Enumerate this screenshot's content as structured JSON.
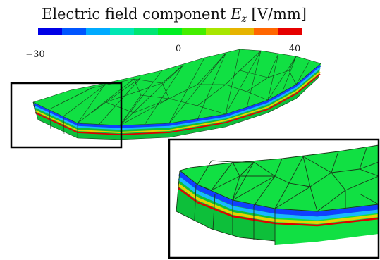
{
  "colorbar": {
    "title_prefix": "Electric field component ",
    "title_symbol": "E",
    "title_subscript": "z",
    "title_unit": " [V/mm]",
    "tick_min": "−30",
    "tick_zero": "0",
    "tick_max": "40",
    "segments": [
      "#0000e6",
      "#0055ff",
      "#00aaff",
      "#00e6b4",
      "#00e673",
      "#00ee22",
      "#44ee00",
      "#a8e600",
      "#e6b400",
      "#ff6600",
      "#e60000"
    ]
  },
  "colors": {
    "body_green": "#11e043",
    "body_side": "#0dbf3a",
    "layer_blue": "#1040ff",
    "layer_cyan": "#18b8ff",
    "layer_yellow": "#e6d200",
    "layer_red": "#e00000"
  }
}
